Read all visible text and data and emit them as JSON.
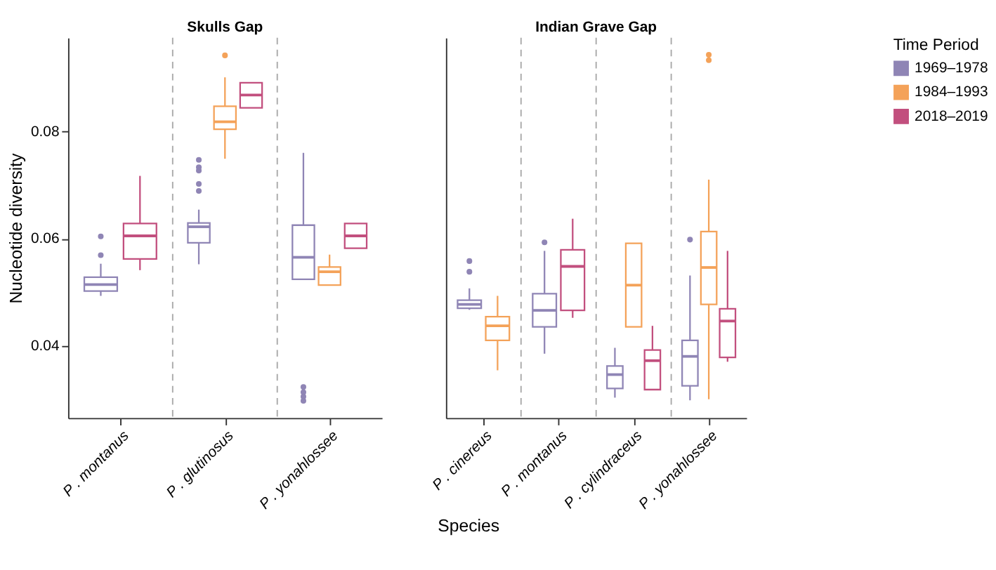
{
  "chart_data": [
    {
      "type": "box",
      "title": "Skulls Gap",
      "xlabel": "Species",
      "ylabel": "Nucleotide diversity",
      "categories": [
        "P . montanus",
        "P . glutinosus",
        "P . yonahlossee"
      ],
      "ylim": [
        0.0265,
        0.0975
      ],
      "yticks": [
        0.04,
        0.06,
        0.08
      ],
      "grid": false,
      "legend": "right",
      "series": [
        {
          "name": "1969–1978",
          "color": "#8f85b5",
          "boxes": [
            {
              "low": 0.0493,
              "q1": 0.0502,
              "median": 0.0514,
              "q3": 0.0528,
              "high": 0.0553,
              "outliers": [
                0.0569,
                0.0604
              ]
            },
            {
              "low": 0.0552,
              "q1": 0.0592,
              "median": 0.0622,
              "q3": 0.0629,
              "high": 0.0654,
              "outliers": [
                0.0689,
                0.0702,
                0.0727,
                0.0733,
                0.0747
              ]
            },
            {
              "low": 0.0524,
              "q1": 0.0524,
              "median": 0.0565,
              "q3": 0.0625,
              "high": 0.076,
              "outliers": [
                0.0297,
                0.0305,
                0.0313,
                0.0323
              ]
            }
          ]
        },
        {
          "name": "1984–1993",
          "color": "#f4a259",
          "boxes": [
            null,
            {
              "low": 0.0749,
              "q1": 0.0804,
              "median": 0.0818,
              "q3": 0.0847,
              "high": 0.0901,
              "outliers": [
                0.0942
              ]
            },
            {
              "low": 0.0513,
              "q1": 0.0513,
              "median": 0.0538,
              "q3": 0.0547,
              "high": 0.057
            }
          ]
        },
        {
          "name": "2018–2019",
          "color": "#c24f7e",
          "boxes": [
            {
              "low": 0.0541,
              "q1": 0.0562,
              "median": 0.0605,
              "q3": 0.0628,
              "high": 0.0717
            },
            {
              "low": 0.0844,
              "q1": 0.0844,
              "median": 0.0868,
              "q3": 0.0891,
              "high": 0.0891
            },
            {
              "low": 0.0582,
              "q1": 0.0582,
              "median": 0.0605,
              "q3": 0.0628,
              "high": 0.0628
            }
          ]
        }
      ]
    },
    {
      "type": "box",
      "title": "Indian Grave Gap",
      "categories": [
        "P . cinereus",
        "P . montanus",
        "P . cylindraceus",
        "P . yonahlossee"
      ],
      "ylim": [
        0.0265,
        0.0975
      ],
      "yticks": [
        0.04,
        0.06,
        0.08
      ],
      "tick_labels": "x",
      "grid": false,
      "legend": "right",
      "legend_title": "Time Period",
      "series": [
        {
          "name": "1969–1978",
          "color": "#8f85b5",
          "boxes": [
            {
              "low": 0.0467,
              "q1": 0.047,
              "median": 0.0477,
              "q3": 0.0485,
              "high": 0.0507,
              "outliers": [
                0.0538,
                0.0558
              ]
            },
            {
              "low": 0.0385,
              "q1": 0.0435,
              "median": 0.0466,
              "q3": 0.0497,
              "high": 0.0577,
              "outliers": [
                0.0593
              ]
            },
            {
              "low": 0.0303,
              "q1": 0.032,
              "median": 0.0346,
              "q3": 0.0362,
              "high": 0.0396
            },
            {
              "low": 0.0298,
              "q1": 0.0325,
              "median": 0.038,
              "q3": 0.041,
              "high": 0.0531,
              "outliers": [
                0.0598
              ]
            }
          ]
        },
        {
          "name": "1984–1993",
          "color": "#f4a259",
          "boxes": [
            {
              "low": 0.0354,
              "q1": 0.041,
              "median": 0.0437,
              "q3": 0.0454,
              "high": 0.0493
            },
            null,
            {
              "low": 0.0435,
              "q1": 0.0435,
              "median": 0.0513,
              "q3": 0.0591,
              "high": 0.0591
            },
            {
              "low": 0.03,
              "q1": 0.0477,
              "median": 0.0546,
              "q3": 0.0613,
              "high": 0.071,
              "outliers": [
                0.0933,
                0.0943
              ]
            }
          ]
        },
        {
          "name": "2018–2019",
          "color": "#c24f7e",
          "boxes": [
            null,
            {
              "low": 0.0452,
              "q1": 0.0466,
              "median": 0.0548,
              "q3": 0.0579,
              "high": 0.0637
            },
            {
              "low": 0.0318,
              "q1": 0.0318,
              "median": 0.0372,
              "q3": 0.0392,
              "high": 0.0437
            },
            {
              "low": 0.037,
              "q1": 0.0378,
              "median": 0.0446,
              "q3": 0.0469,
              "high": 0.0577
            }
          ]
        }
      ]
    }
  ]
}
